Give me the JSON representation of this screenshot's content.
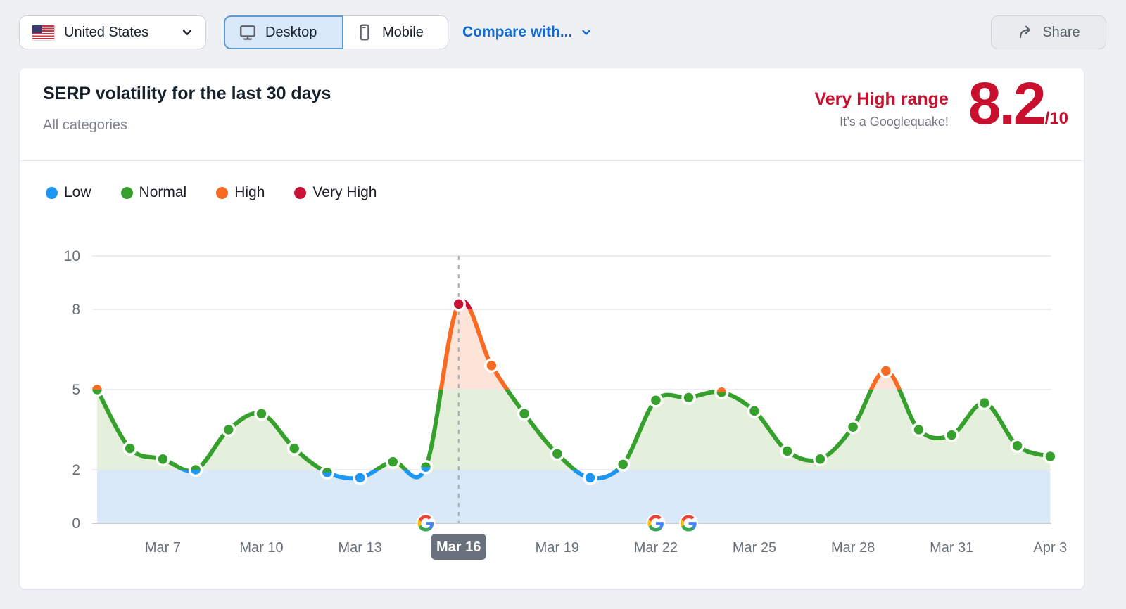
{
  "topbar": {
    "country_label": "United States",
    "desktop_label": "Desktop",
    "mobile_label": "Mobile",
    "selected_device": "Desktop",
    "compare_label": "Compare with...",
    "share_label": "Share"
  },
  "header": {
    "title": "SERP volatility for the last 30 days",
    "subtitle": "All categories",
    "range_label": "Very High range",
    "range_note": "It’s a Googlequake!",
    "score": "8.2",
    "score_max": "/10"
  },
  "legend": {
    "items": [
      {
        "label": "Low",
        "color": "#1e96f3"
      },
      {
        "label": "Normal",
        "color": "#35a02c"
      },
      {
        "label": "High",
        "color": "#f96a22"
      },
      {
        "label": "Very High",
        "color": "#c81237"
      }
    ]
  },
  "chart_data": {
    "type": "area",
    "title": "SERP volatility for the last 30 days",
    "x": [
      "Mar 5",
      "Mar 6",
      "Mar 7",
      "Mar 8",
      "Mar 9",
      "Mar 10",
      "Mar 11",
      "Mar 12",
      "Mar 13",
      "Mar 14",
      "Mar 15",
      "Mar 16",
      "Mar 17",
      "Mar 18",
      "Mar 19",
      "Mar 20",
      "Mar 21",
      "Mar 22",
      "Mar 23",
      "Mar 24",
      "Mar 25",
      "Mar 26",
      "Mar 27",
      "Mar 28",
      "Mar 29",
      "Mar 30",
      "Mar 31",
      "Apr 1",
      "Apr 2",
      "Apr 3"
    ],
    "values": [
      5.0,
      2.8,
      2.4,
      2.0,
      3.5,
      4.1,
      2.8,
      1.9,
      1.7,
      2.3,
      2.1,
      8.2,
      5.9,
      4.1,
      2.6,
      1.7,
      2.2,
      4.6,
      4.7,
      4.9,
      4.2,
      2.7,
      2.4,
      3.6,
      5.7,
      3.5,
      3.3,
      4.5,
      2.9,
      2.5
    ],
    "x_tick_labels": [
      "Mar 7",
      "Mar 10",
      "Mar 13",
      "Mar 16",
      "Mar 19",
      "Mar 22",
      "Mar 25",
      "Mar 28",
      "Mar 31",
      "Apr 3"
    ],
    "y_ticks": [
      0,
      2,
      5,
      8,
      10
    ],
    "ylim": [
      0,
      10
    ],
    "grid": true,
    "highlight_x": "Mar 16",
    "google_update_markers": [
      "Mar 15",
      "Mar 22",
      "Mar 23"
    ],
    "bands": {
      "low": [
        0,
        2
      ],
      "normal": [
        2,
        5
      ],
      "high": [
        5,
        8
      ],
      "very_high": [
        8,
        10
      ]
    },
    "colors": {
      "low": "#1e96f3",
      "normal": "#35a02c",
      "high": "#f96a22",
      "very_high": "#c81237",
      "fill_low": "#d9e9f8",
      "fill_normal": "#e4efdc",
      "fill_high": "#fce4d8",
      "grid": "#e5e7ec",
      "baseline": "#c9cfd7",
      "axis_label": "#68707a",
      "dashed": "#a2a9b2",
      "badge_bg": "#68707b",
      "badge_text": "#ffffff"
    }
  }
}
